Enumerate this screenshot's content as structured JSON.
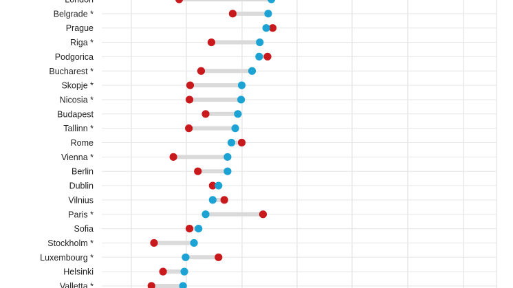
{
  "chart_data": {
    "type": "dumbbell",
    "categories": [
      "London",
      "Belgrade *",
      "Prague",
      "Riga *",
      "Podgorica",
      "Bucharest *",
      "Skopje *",
      "Nicosia *",
      "Budapest",
      "Tallinn *",
      "Rome",
      "Vienna *",
      "Berlin",
      "Dublin",
      "Vilnius",
      "Paris *",
      "Sofia",
      "Stockholm *",
      "Luxembourg *",
      "Helsinki",
      "Valletta *"
    ],
    "series": [
      {
        "color": "#c8191d",
        "values": [
          230,
          313,
          375,
          280,
          367,
          264,
          247,
          246,
          271,
          245,
          327,
          221,
          259,
          282,
          300,
          360,
          246,
          191,
          291,
          205,
          187
        ]
      },
      {
        "color": "#1ca3d4",
        "values": [
          373,
          368,
          365,
          355,
          354,
          343,
          327,
          326,
          321,
          317,
          311,
          305,
          305,
          291,
          282,
          271,
          260,
          253,
          240,
          238,
          236
        ]
      }
    ],
    "grid": true,
    "xlim": [
      110,
      722
    ]
  }
}
